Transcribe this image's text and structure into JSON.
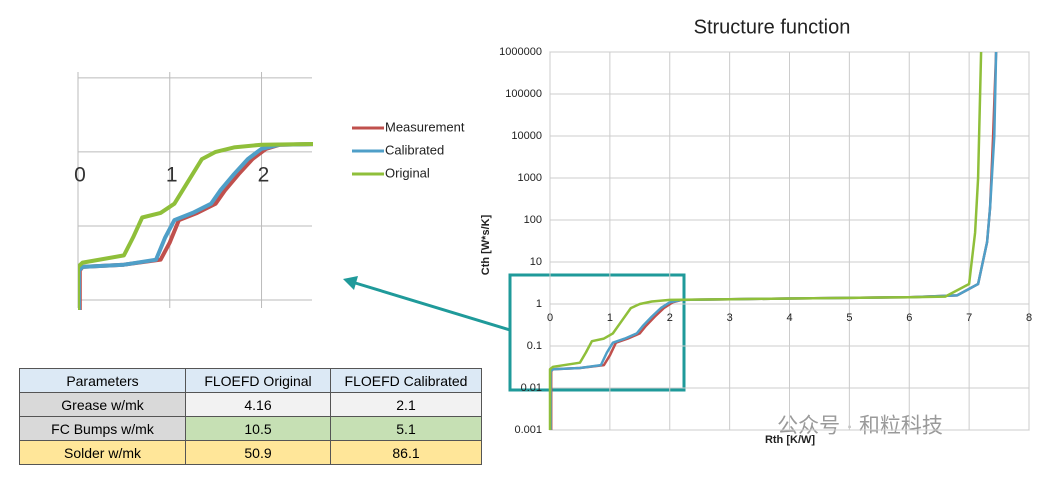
{
  "chart_data": [
    {
      "type": "line",
      "title": "Structure function",
      "x_label": "Rth [K/W]",
      "y_label": "Cth [W*s/K]",
      "xlim": [
        0,
        8
      ],
      "xticks": [
        0,
        1,
        2,
        3,
        4,
        5,
        6,
        7,
        8
      ],
      "ylim": [
        0.001,
        1000000
      ],
      "yticks": [
        0.001,
        0.01,
        0.1,
        1,
        10,
        100,
        1000,
        10000,
        100000,
        1000000
      ],
      "y_log": true,
      "grid": true,
      "series": [
        {
          "name": "Measurement",
          "color": "#c0504d",
          "x": [
            0.02,
            0.02,
            0.05,
            0.5,
            0.9,
            1.0,
            1.1,
            1.3,
            1.5,
            1.6,
            1.75,
            1.9,
            2.05,
            2.2,
            3,
            4,
            5,
            6,
            6.8,
            7.15,
            7.3,
            7.35,
            7.4,
            7.45
          ],
          "values": [
            0.001,
            0.025,
            0.028,
            0.03,
            0.035,
            0.06,
            0.12,
            0.15,
            0.2,
            0.3,
            0.5,
            0.8,
            1.1,
            1.25,
            1.3,
            1.35,
            1.4,
            1.45,
            1.6,
            3,
            30,
            200,
            10000,
            1000000
          ]
        },
        {
          "name": "Calibrated",
          "color": "#4f9fc8",
          "x": [
            0.01,
            0.01,
            0.05,
            0.5,
            0.85,
            0.95,
            1.05,
            1.25,
            1.45,
            1.55,
            1.7,
            1.85,
            2.0,
            2.2,
            3,
            4,
            5,
            6,
            6.8,
            7.15,
            7.3,
            7.35,
            7.42,
            7.45
          ],
          "values": [
            0.001,
            0.025,
            0.028,
            0.03,
            0.035,
            0.07,
            0.12,
            0.15,
            0.2,
            0.3,
            0.5,
            0.8,
            1.1,
            1.25,
            1.3,
            1.35,
            1.4,
            1.45,
            1.6,
            3,
            30,
            200,
            10000,
            1000000
          ]
        },
        {
          "name": "Original",
          "color": "#8fbf3a",
          "x": [
            0.0,
            0.0,
            0.05,
            0.5,
            0.6,
            0.7,
            0.9,
            1.05,
            1.2,
            1.35,
            1.5,
            1.7,
            2.0,
            3,
            4,
            5,
            6,
            6.6,
            7.0,
            7.1,
            7.15,
            7.2
          ],
          "values": [
            0.001,
            0.028,
            0.032,
            0.04,
            0.07,
            0.13,
            0.15,
            0.2,
            0.4,
            0.8,
            1.0,
            1.15,
            1.25,
            1.3,
            1.35,
            1.4,
            1.45,
            1.5,
            3,
            50,
            1000,
            1000000
          ]
        }
      ]
    },
    {
      "type": "zoom",
      "xlim": [
        0,
        2.55
      ],
      "xticks": [
        0,
        1,
        2
      ],
      "ylim": [
        0.0078,
        12
      ],
      "yticks": [
        0.01,
        0.1,
        1,
        10
      ],
      "y_log": true,
      "grid": true,
      "show_ytick_labels": false
    }
  ],
  "table": {
    "header": [
      "Parameters",
      "FLOEFD Original",
      "FLOEFD Calibrated"
    ],
    "rows": [
      [
        "Grease w/mk",
        "4.16",
        "2.1"
      ],
      [
        "FC Bumps w/mk",
        "10.5",
        "5.1"
      ],
      [
        "Solder w/mk",
        "50.9",
        "86.1"
      ]
    ]
  },
  "watermark": "公众号 · 和粒科技"
}
